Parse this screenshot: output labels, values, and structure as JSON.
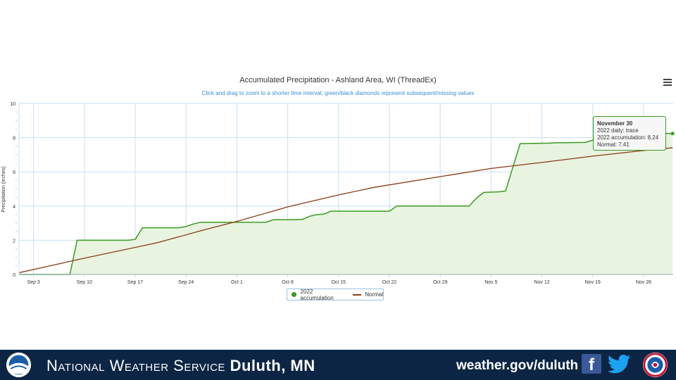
{
  "chart_data": {
    "type": "area",
    "title": "Accumulated Precipitation - Ashland Area, WI (ThreadEx)",
    "subtitle": "Click and drag to zoom to a shorter time interval; green/black diamonds represent subsequent/missing values",
    "ylabel": "Precipitation (inches)",
    "ylim": [
      0,
      10
    ],
    "yticks": [
      0,
      2,
      4,
      6,
      8,
      10
    ],
    "xlim": [
      "2022-09-01",
      "2022-11-30"
    ],
    "xticks": [
      {
        "date": "2022-09-03",
        "label": "Sep 3"
      },
      {
        "date": "2022-09-10",
        "label": "Sep 10"
      },
      {
        "date": "2022-09-17",
        "label": "Sep 17"
      },
      {
        "date": "2022-09-24",
        "label": "Sep 24"
      },
      {
        "date": "2022-10-01",
        "label": "Oct 1"
      },
      {
        "date": "2022-10-08",
        "label": "Oct 8"
      },
      {
        "date": "2022-10-15",
        "label": "Oct 15"
      },
      {
        "date": "2022-10-22",
        "label": "Oct 22"
      },
      {
        "date": "2022-10-29",
        "label": "Oct 29"
      },
      {
        "date": "2022-11-05",
        "label": "Nov 5"
      },
      {
        "date": "2022-11-12",
        "label": "Nov 12"
      },
      {
        "date": "2022-11-19",
        "label": "Nov 19"
      },
      {
        "date": "2022-11-26",
        "label": "Nov 26"
      }
    ],
    "grid": true,
    "legend_position": "bottom-center",
    "series": [
      {
        "name": "2022 accumulation",
        "color": "#3a9a22",
        "fill": "#e8f4e0",
        "points": [
          [
            "2022-09-01",
            0.0
          ],
          [
            "2022-09-08",
            0.0
          ],
          [
            "2022-09-09",
            2.0
          ],
          [
            "2022-09-16",
            2.0
          ],
          [
            "2022-09-17",
            2.05
          ],
          [
            "2022-09-18",
            2.73
          ],
          [
            "2022-09-23",
            2.73
          ],
          [
            "2022-09-24",
            2.8
          ],
          [
            "2022-09-25",
            2.95
          ],
          [
            "2022-09-26",
            3.05
          ],
          [
            "2022-10-05",
            3.05
          ],
          [
            "2022-10-06",
            3.2
          ],
          [
            "2022-10-09",
            3.2
          ],
          [
            "2022-10-10",
            3.22
          ],
          [
            "2022-10-11",
            3.4
          ],
          [
            "2022-10-12",
            3.5
          ],
          [
            "2022-10-13",
            3.53
          ],
          [
            "2022-10-14",
            3.7
          ],
          [
            "2022-10-22",
            3.7
          ],
          [
            "2022-10-23",
            4.0
          ],
          [
            "2022-11-02",
            4.0
          ],
          [
            "2022-11-03",
            4.47
          ],
          [
            "2022-11-04",
            4.8
          ],
          [
            "2022-11-06",
            4.83
          ],
          [
            "2022-11-07",
            4.88
          ],
          [
            "2022-11-09",
            7.65
          ],
          [
            "2022-11-13",
            7.68
          ],
          [
            "2022-11-14",
            7.7
          ],
          [
            "2022-11-18",
            7.72
          ],
          [
            "2022-11-19",
            7.85
          ],
          [
            "2022-11-21",
            8.1
          ],
          [
            "2022-11-29",
            8.24
          ],
          [
            "2022-11-30",
            8.24
          ]
        ]
      },
      {
        "name": "Normal",
        "color": "#8b3a14",
        "points": [
          [
            "2022-09-01",
            0.1
          ],
          [
            "2022-09-10",
            0.95
          ],
          [
            "2022-09-20",
            1.85
          ],
          [
            "2022-09-26",
            2.55
          ],
          [
            "2022-10-01",
            3.1
          ],
          [
            "2022-10-08",
            3.95
          ],
          [
            "2022-10-15",
            4.65
          ],
          [
            "2022-10-20",
            5.1
          ],
          [
            "2022-10-29",
            5.72
          ],
          [
            "2022-11-05",
            6.2
          ],
          [
            "2022-11-12",
            6.55
          ],
          [
            "2022-11-19",
            6.92
          ],
          [
            "2022-11-26",
            7.25
          ],
          [
            "2022-11-30",
            7.41
          ]
        ]
      }
    ],
    "tooltip": {
      "date": "November 30",
      "daily": "2022 daily: trace",
      "accumulation": "2022 accumulation: 8.24",
      "normal": "Normal: 7.41"
    }
  },
  "legend": {
    "accum_label": "2022 accumulation",
    "normal_label": "Normal"
  },
  "footer": {
    "org_name": "National Weather Service",
    "office": "Duluth, MN",
    "url": "weather.gov/duluth",
    "background": "#0c2544"
  },
  "icons": [
    "noaa-logo",
    "menu-icon",
    "facebook-icon",
    "twitter-icon",
    "nws-logo"
  ]
}
